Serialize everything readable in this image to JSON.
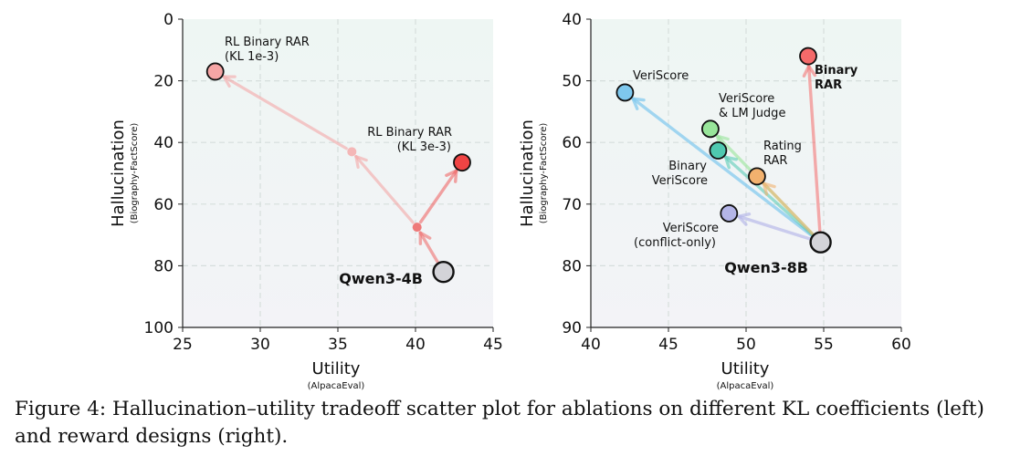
{
  "chart_data": [
    {
      "type": "scatter",
      "xlabel": "Utility",
      "xlabel_sub": "(AlpacaEval)",
      "ylabel": "Hallucination",
      "ylabel_sub": "(Biography-FactScore)",
      "xlim": [
        25,
        45
      ],
      "ylim": [
        100,
        0
      ],
      "xticks": [
        "25",
        "30",
        "35",
        "40",
        "45"
      ],
      "yticks": [
        "0",
        "20",
        "40",
        "60",
        "80",
        "100"
      ],
      "grid": true,
      "points": [
        {
          "name": "Qwen3-4B",
          "x": 41.8,
          "y": 82.0,
          "color": "#d3d3d8",
          "role": "baseline"
        },
        {
          "name": "RL Binary RAR (KL 1e-3)",
          "x": 27.1,
          "y": 17.0,
          "color": "#f6a5a5",
          "role": "final"
        },
        {
          "name": "RL Binary RAR (KL 1e-3) intermediate",
          "x": 35.9,
          "y": 43.0,
          "color": "#f4b0b0",
          "role": "intermediate"
        },
        {
          "name": "RL Binary RAR (KL 3e-3)",
          "x": 43.0,
          "y": 46.5,
          "color": "#f04444",
          "role": "final"
        },
        {
          "name": "RL Binary RAR (KL 3e-3) intermediate",
          "x": 40.1,
          "y": 67.5,
          "color": "#ee6b6b",
          "role": "intermediate"
        }
      ],
      "annotations": [
        {
          "id": "kl1",
          "lines": [
            "RL Binary RAR",
            "(KL 1e-3)"
          ],
          "bold": false
        },
        {
          "id": "kl3",
          "lines": [
            "RL Binary RAR",
            "(KL 3e-3)"
          ],
          "bold": false
        },
        {
          "id": "base",
          "lines": [
            "Qwen3-4B"
          ],
          "bold": true
        }
      ]
    },
    {
      "type": "scatter",
      "xlabel": "Utility",
      "xlabel_sub": "(AlpacaEval)",
      "ylabel": "Hallucination",
      "ylabel_sub": "(Biography-FactScore)",
      "xlim": [
        40,
        60
      ],
      "ylim": [
        90,
        40
      ],
      "xticks": [
        "40",
        "45",
        "50",
        "55",
        "60"
      ],
      "yticks": [
        "40",
        "50",
        "60",
        "70",
        "80",
        "90"
      ],
      "grid": true,
      "points": [
        {
          "name": "Qwen3-8B",
          "x": 54.8,
          "y": 76.2,
          "color": "#d3d3d8",
          "role": "baseline"
        },
        {
          "name": "VeriScore",
          "x": 42.2,
          "y": 51.9,
          "color": "#7ec8ee",
          "role": "final"
        },
        {
          "name": "Binary RAR",
          "x": 54.0,
          "y": 46.0,
          "color": "#f46a6a",
          "role": "final"
        },
        {
          "name": "VeriScore & LM Judge",
          "x": 47.7,
          "y": 57.8,
          "color": "#98e59a",
          "role": "final"
        },
        {
          "name": "Binary VeriScore",
          "x": 48.2,
          "y": 61.3,
          "color": "#4fc9b0",
          "role": "final"
        },
        {
          "name": "Rating RAR",
          "x": 50.7,
          "y": 65.5,
          "color": "#f2b16e",
          "role": "final"
        },
        {
          "name": "VeriScore (conflict-only)",
          "x": 48.9,
          "y": 71.5,
          "color": "#b4b5e8",
          "role": "final"
        }
      ],
      "annotations": [
        {
          "id": "veriscore",
          "lines": [
            "VeriScore"
          ],
          "bold": false
        },
        {
          "id": "binaryrar",
          "lines": [
            "Binary",
            "RAR"
          ],
          "bold": true
        },
        {
          "id": "lmjudge",
          "lines": [
            "VeriScore",
            "& LM Judge"
          ],
          "bold": false
        },
        {
          "id": "binveri",
          "lines": [
            "Binary",
            "VeriScore"
          ],
          "bold": false
        },
        {
          "id": "rating",
          "lines": [
            "Rating",
            "RAR"
          ],
          "bold": false
        },
        {
          "id": "conflict",
          "lines": [
            "VeriScore",
            "(conflict-only)"
          ],
          "bold": false
        },
        {
          "id": "base",
          "lines": [
            "Qwen3-8B"
          ],
          "bold": true
        }
      ]
    }
  ],
  "caption": {
    "label": "Figure 4:",
    "text": "Hallucination–utility tradeoff scatter plot for ablations on different KL coefficients (left) and reward designs (right)."
  }
}
